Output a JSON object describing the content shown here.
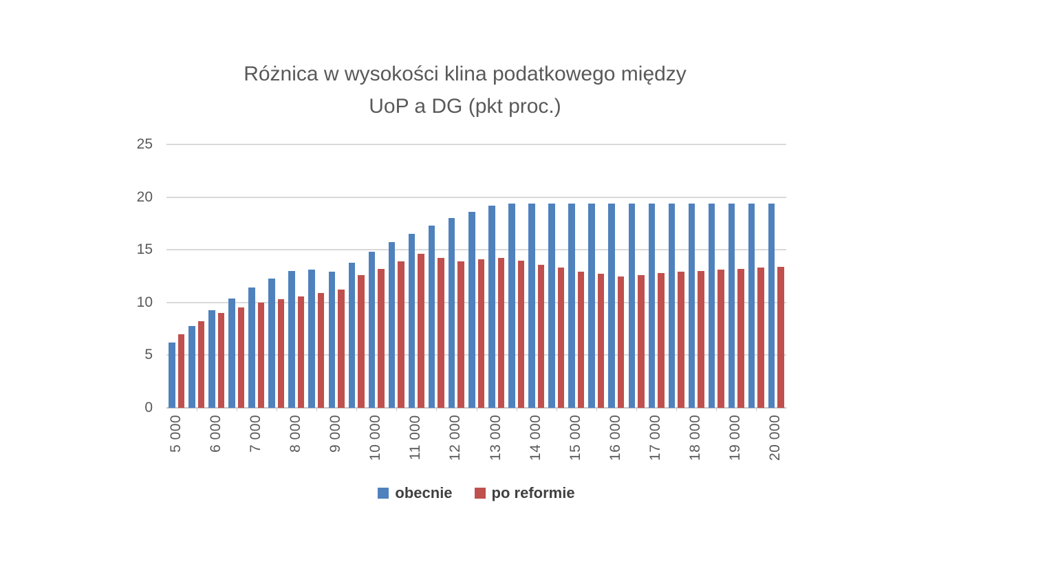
{
  "page": {
    "background": "#ffffff"
  },
  "chart_data": {
    "type": "bar",
    "title": "Różnica w wysokości klina podatkowego między UoP a DG (pkt proc.)",
    "title_lines": [
      "Różnica w wysokości klina podatkowego między",
      "UoP a DG (pkt proc.)"
    ],
    "xlabel": "",
    "ylabel": "",
    "x": [
      5000,
      5500,
      6000,
      6500,
      7000,
      7500,
      8000,
      8500,
      9000,
      9500,
      10000,
      10500,
      11000,
      11500,
      12000,
      12500,
      13000,
      13500,
      14000,
      14500,
      15000,
      15500,
      16000,
      16500,
      17000,
      17500,
      18000,
      18500,
      19000,
      19500,
      20000
    ],
    "x_tick_labels": [
      "5 000",
      "6 000",
      "7 000",
      "8 000",
      "9 000",
      "10 000",
      "11 000",
      "12 000",
      "13 000",
      "14 000",
      "15 000",
      "16 000",
      "17 000",
      "18 000",
      "19 000",
      "20 000"
    ],
    "x_label_every": 2,
    "series": [
      {
        "name": "obecnie",
        "color": "#4F81BD",
        "values": [
          6.2,
          7.8,
          9.3,
          10.4,
          11.4,
          12.3,
          13.0,
          13.1,
          12.9,
          13.8,
          14.8,
          15.7,
          16.5,
          17.3,
          18.0,
          18.6,
          19.2,
          19.4,
          19.4,
          19.4,
          19.4,
          19.4,
          19.4,
          19.4,
          19.4,
          19.4,
          19.4,
          19.4,
          19.4,
          19.4,
          19.4
        ]
      },
      {
        "name": "po reformie",
        "color": "#C0504D",
        "values": [
          7.0,
          8.2,
          9.0,
          9.5,
          10.0,
          10.3,
          10.6,
          10.9,
          11.2,
          12.6,
          13.2,
          13.9,
          14.6,
          14.2,
          13.9,
          14.1,
          14.2,
          14.0,
          13.6,
          13.3,
          12.9,
          12.7,
          12.5,
          12.6,
          12.8,
          12.9,
          13.0,
          13.1,
          13.2,
          13.3,
          13.4
        ]
      }
    ],
    "ylim": [
      0,
      25
    ],
    "y_ticks": [
      0,
      5,
      10,
      15,
      20,
      25
    ],
    "y_tick_labels": [
      "0",
      "5",
      "10",
      "15",
      "20",
      "25"
    ],
    "grid": "horizontal",
    "legend_position": "bottom",
    "colors": {
      "grid": "#d9d9d9",
      "axis": "#c3c3c3",
      "text": "#595959",
      "legend_text": "#404040"
    }
  }
}
